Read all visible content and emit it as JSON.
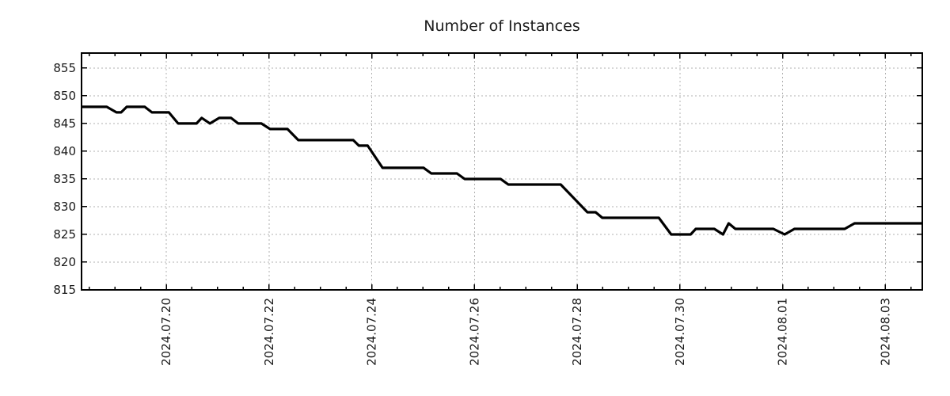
{
  "chart_data": {
    "type": "line",
    "title": "Number of Instances",
    "legend": "none",
    "grid": "dotted",
    "x_axis": {
      "unit": "date",
      "tick_labels": [
        "2024.07.20",
        "2024.07.22",
        "2024.07.24",
        "2024.07.26",
        "2024.07.28",
        "2024.07.30",
        "2024.08.01",
        "2024.08.03"
      ],
      "tick_positions_days": [
        0,
        2,
        4,
        6,
        8,
        10,
        12,
        14
      ],
      "minor_tick_interval_days": 0.5,
      "range_days": [
        -1.65,
        14.72
      ]
    },
    "y_axis": {
      "ticks": [
        815,
        820,
        825,
        830,
        835,
        840,
        845,
        850,
        855
      ],
      "range": [
        815,
        857.7
      ]
    },
    "series": [
      {
        "name": "instances",
        "color": "#000000",
        "stroke_width": 3.2,
        "points": [
          [
            -1.65,
            848
          ],
          [
            -1.16,
            848
          ],
          [
            -0.97,
            847
          ],
          [
            -0.88,
            847
          ],
          [
            -0.77,
            848
          ],
          [
            -0.42,
            848
          ],
          [
            -0.28,
            847
          ],
          [
            0.05,
            847
          ],
          [
            0.23,
            845
          ],
          [
            0.59,
            845
          ],
          [
            0.69,
            846
          ],
          [
            0.85,
            845
          ],
          [
            1.03,
            846
          ],
          [
            1.26,
            846
          ],
          [
            1.4,
            845
          ],
          [
            1.85,
            845
          ],
          [
            2.02,
            844
          ],
          [
            2.36,
            844
          ],
          [
            2.57,
            842
          ],
          [
            3.64,
            842
          ],
          [
            3.75,
            841
          ],
          [
            3.92,
            841
          ],
          [
            4.21,
            837
          ],
          [
            5.01,
            837
          ],
          [
            5.16,
            836
          ],
          [
            5.66,
            836
          ],
          [
            5.81,
            835
          ],
          [
            6.51,
            835
          ],
          [
            6.66,
            834
          ],
          [
            7.68,
            834
          ],
          [
            8.2,
            829
          ],
          [
            8.36,
            829
          ],
          [
            8.49,
            828
          ],
          [
            9.59,
            828
          ],
          [
            9.83,
            825
          ],
          [
            10.21,
            825
          ],
          [
            10.31,
            826
          ],
          [
            10.67,
            826
          ],
          [
            10.84,
            825
          ],
          [
            10.95,
            827
          ],
          [
            11.08,
            826
          ],
          [
            11.82,
            826
          ],
          [
            12.04,
            825
          ],
          [
            12.23,
            826
          ],
          [
            13.21,
            826
          ],
          [
            13.4,
            827
          ],
          [
            14.72,
            827
          ]
        ]
      }
    ]
  }
}
